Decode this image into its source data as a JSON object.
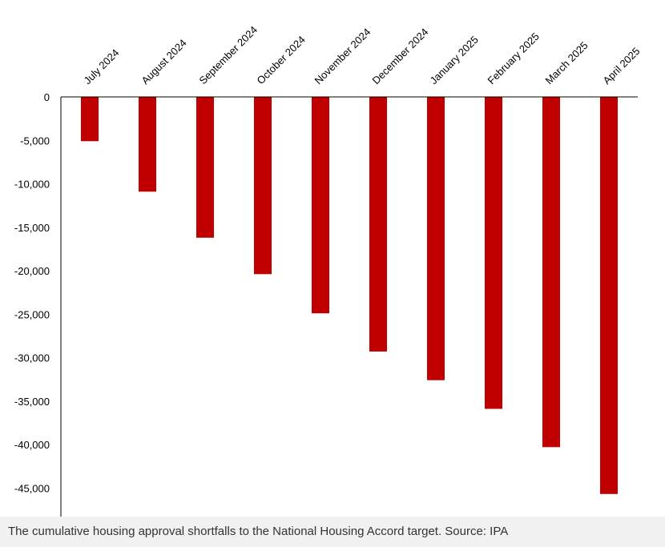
{
  "chart_data": {
    "type": "bar",
    "categories": [
      "July 2024",
      "August 2024",
      "September 2024",
      "October 2024",
      "November 2024",
      "December 2024",
      "January 2025",
      "February 2025",
      "March 2025",
      "April 2025"
    ],
    "values": [
      -5100,
      -10900,
      -16200,
      -20400,
      -24900,
      -29300,
      -32600,
      -35900,
      -40300,
      -45700
    ],
    "ylim": [
      -48000,
      0
    ],
    "yticks": [
      0,
      -5000,
      -10000,
      -15000,
      -20000,
      -25000,
      -30000,
      -35000,
      -40000,
      -45000
    ],
    "ytick_labels": [
      "0",
      "-5,000",
      "-10,000",
      "-15,000",
      "-20,000",
      "-25,000",
      "-30,000",
      "-35,000",
      "-40,000",
      "-45,000"
    ],
    "bar_color": "#c00000",
    "axis_color": "#000000",
    "grid": false,
    "legend": "none",
    "xlabel": "",
    "ylabel": ""
  },
  "caption": {
    "text": "The cumulative housing approval shortfalls to the National Housing Accord target. Source: IPA",
    "background": "#f1f1f1"
  }
}
